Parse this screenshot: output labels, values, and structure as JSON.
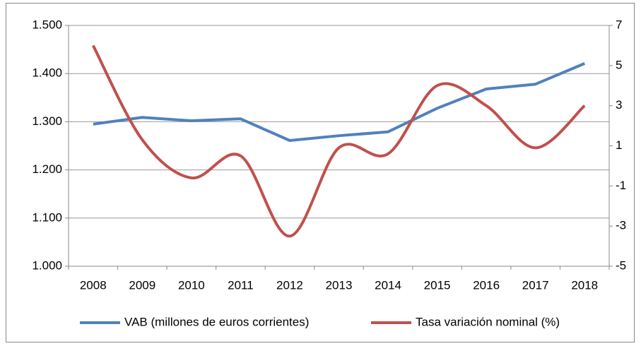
{
  "chart_data": {
    "type": "line",
    "categories": [
      "2008",
      "2009",
      "2010",
      "2011",
      "2012",
      "2013",
      "2014",
      "2015",
      "2016",
      "2017",
      "2018"
    ],
    "series": [
      {
        "name": "VAB (millones de euros corrientes)",
        "color": "#4f81bd",
        "values": [
          1295,
          1309,
          1302,
          1306,
          1261,
          1271,
          1279,
          1328,
          1368,
          1378,
          1421
        ]
      },
      {
        "name": "Tasa variación nominal (%)",
        "color": "#c0504d",
        "axis": "y2",
        "smooth": true,
        "values": [
          6.0,
          1.3,
          -0.6,
          0.5,
          -3.5,
          0.9,
          0.6,
          4.0,
          3.0,
          0.9,
          3.0
        ]
      }
    ],
    "ylim": [
      1000,
      1500
    ],
    "yticks": [
      {
        "value": 1000,
        "label": "1.000"
      },
      {
        "value": 1100,
        "label": "1.100"
      },
      {
        "value": 1200,
        "label": "1.200"
      },
      {
        "value": 1300,
        "label": "1.300"
      },
      {
        "value": 1400,
        "label": "1.400"
      },
      {
        "value": 1500,
        "label": "1.500"
      }
    ],
    "y2lim": [
      -5,
      7
    ],
    "y2ticks": [
      -5,
      -3,
      -1,
      1,
      3,
      5,
      7
    ],
    "grid": true,
    "legend": "bottom"
  }
}
